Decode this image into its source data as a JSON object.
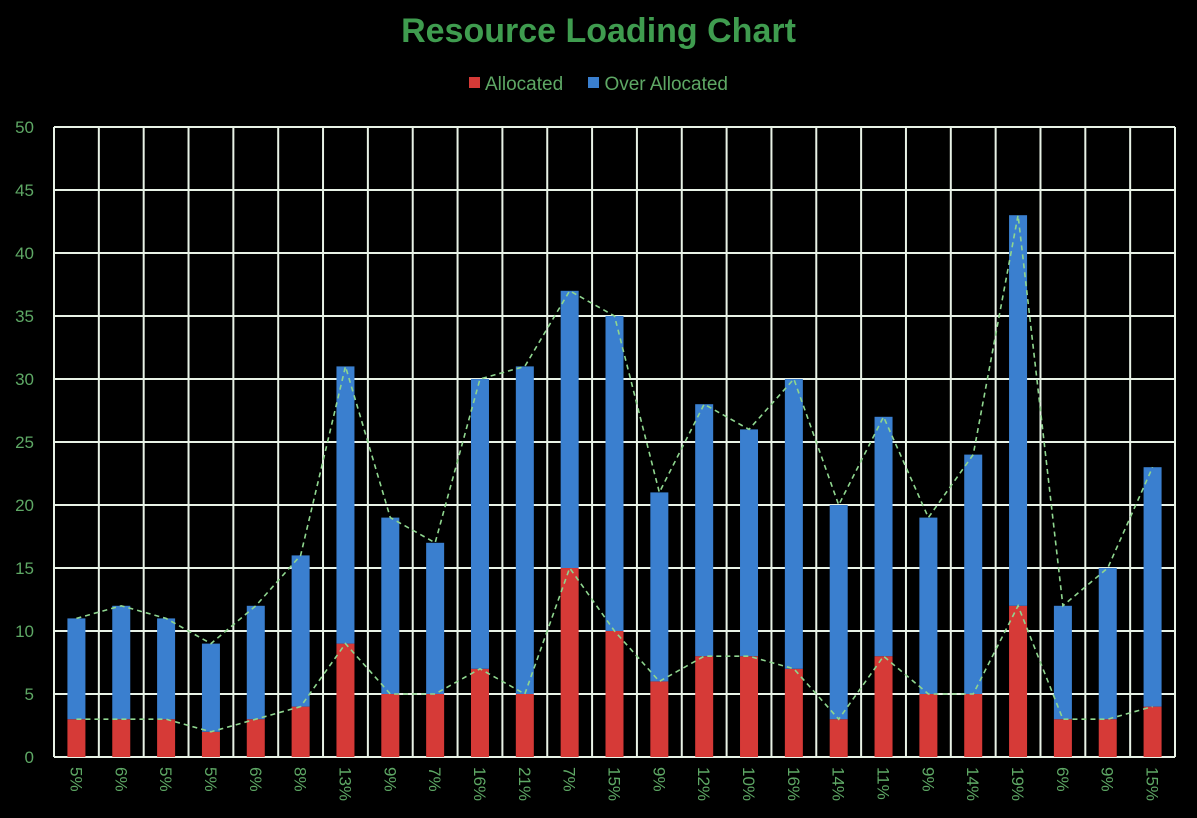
{
  "colors": {
    "allocated": "#d63a37",
    "over_allocated": "#3a7fcf",
    "grid": "#e8f2e6",
    "text": "#5ea865",
    "title": "#3f9c4f",
    "trend": "#8fd68f"
  },
  "chart_data": {
    "type": "bar",
    "stacked": true,
    "title": "Resource Loading Chart",
    "xlabel": "",
    "ylabel": "",
    "ylim": [
      0,
      50
    ],
    "yticks": [
      0,
      5,
      10,
      15,
      20,
      25,
      30,
      35,
      40,
      45,
      50
    ],
    "grid": true,
    "legend_position": "top",
    "categories": [
      "5%",
      "6%",
      "5%",
      "5%",
      "6%",
      "8%",
      "13%",
      "9%",
      "7%",
      "16%",
      "21%",
      "7%",
      "15%",
      "9%",
      "12%",
      "10%",
      "16%",
      "14%",
      "11%",
      "9%",
      "14%",
      "19%",
      "6%",
      "9%",
      "15%"
    ],
    "series": [
      {
        "name": "Allocated",
        "values": [
          3,
          3,
          3,
          2,
          3,
          4,
          9,
          5,
          5,
          7,
          5,
          15,
          10,
          6,
          8,
          8,
          7,
          3,
          8,
          5,
          5,
          12,
          3,
          3,
          4
        ]
      },
      {
        "name": "Over Allocated",
        "values": [
          8,
          9,
          8,
          7,
          9,
          12,
          22,
          14,
          12,
          23,
          26,
          22,
          25,
          15,
          20,
          18,
          23,
          17,
          19,
          14,
          19,
          31,
          9,
          12,
          19
        ]
      }
    ]
  }
}
